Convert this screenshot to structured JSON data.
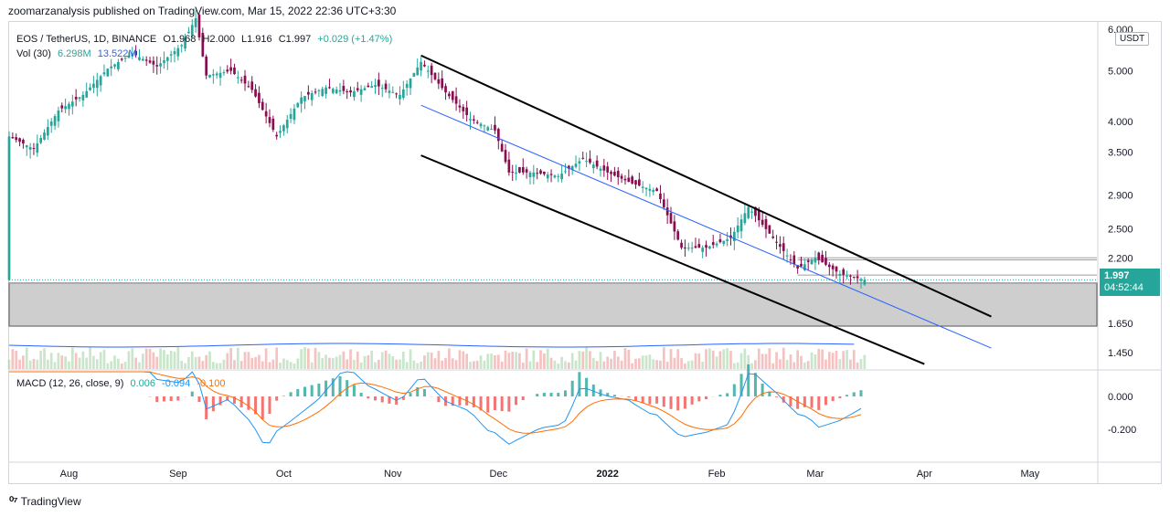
{
  "header": {
    "publisher_line": "zoomarzanalysis published on TradingView.com, Mar 15, 2022 22:36 UTC+3:30"
  },
  "legend": {
    "symbol": "EOS / TetherUS, 1D, BINANCE",
    "open": "O1.968",
    "high": "H2.000",
    "low": "L1.916",
    "close": "C1.997",
    "change": "+0.029 (+1.47%)",
    "vol_label": "Vol (30)",
    "vol_value": "6.298M",
    "vol_ma": "13.522M"
  },
  "macd_legend": {
    "label": "MACD (12, 26, close, 9)",
    "hist": "0.006",
    "macd": "-0.094",
    "signal": "-0.100"
  },
  "price_axis": {
    "currency": "USDT",
    "last_price": "1.997",
    "countdown": "04:52:44",
    "ticks": [
      "6.000",
      "5.000",
      "4.000",
      "3.500",
      "2.900",
      "2.500",
      "2.200",
      "1.650",
      "1.450"
    ]
  },
  "macd_axis": {
    "ticks": [
      "0.000",
      "-0.200"
    ]
  },
  "time_axis": {
    "labels": [
      "Aug",
      "Sep",
      "Oct",
      "Nov",
      "Dec",
      "2022",
      "Feb",
      "Mar",
      "Apr",
      "May"
    ]
  },
  "footer": {
    "brand": "TradingView"
  },
  "colors": {
    "up": "#26a69a",
    "down": "#880e4f",
    "macd_line": "#2196f3",
    "signal_line": "#ff6d00",
    "support_zone": "#bdbdbd",
    "channel": "#000000",
    "midline": "#2962ff"
  },
  "chart_data": {
    "type": "candlestick",
    "symbol": "EOS / TetherUS",
    "interval": "1D",
    "exchange": "BINANCE",
    "y_scale": "log",
    "ylim": [
      1.35,
      6.2
    ],
    "x_range": [
      "2021-07-15",
      "2022-05-20"
    ],
    "close_series": [
      {
        "date": "2021-07-15",
        "close": 3.75
      },
      {
        "date": "2021-07-22",
        "close": 3.55
      },
      {
        "date": "2021-07-29",
        "close": 4.2
      },
      {
        "date": "2021-08-05",
        "close": 4.5
      },
      {
        "date": "2021-08-12",
        "close": 5.05
      },
      {
        "date": "2021-08-19",
        "close": 5.4
      },
      {
        "date": "2021-08-26",
        "close": 5.1
      },
      {
        "date": "2021-09-02",
        "close": 5.6
      },
      {
        "date": "2021-09-06",
        "close": 6.3
      },
      {
        "date": "2021-09-09",
        "close": 4.9
      },
      {
        "date": "2021-09-16",
        "close": 5.0
      },
      {
        "date": "2021-09-22",
        "close": 4.6
      },
      {
        "date": "2021-09-29",
        "close": 3.75
      },
      {
        "date": "2021-10-06",
        "close": 4.45
      },
      {
        "date": "2021-10-13",
        "close": 4.65
      },
      {
        "date": "2021-10-20",
        "close": 4.55
      },
      {
        "date": "2021-10-27",
        "close": 4.7
      },
      {
        "date": "2021-11-03",
        "close": 4.5
      },
      {
        "date": "2021-11-09",
        "close": 5.2
      },
      {
        "date": "2021-11-16",
        "close": 4.55
      },
      {
        "date": "2021-11-23",
        "close": 4.05
      },
      {
        "date": "2021-11-30",
        "close": 3.85
      },
      {
        "date": "2021-12-04",
        "close": 3.2
      },
      {
        "date": "2021-12-11",
        "close": 3.2
      },
      {
        "date": "2021-12-18",
        "close": 3.15
      },
      {
        "date": "2021-12-25",
        "close": 3.4
      },
      {
        "date": "2022-01-01",
        "close": 3.2
      },
      {
        "date": "2022-01-08",
        "close": 3.05
      },
      {
        "date": "2022-01-15",
        "close": 2.95
      },
      {
        "date": "2022-01-22",
        "close": 2.3
      },
      {
        "date": "2022-01-29",
        "close": 2.3
      },
      {
        "date": "2022-02-05",
        "close": 2.4
      },
      {
        "date": "2022-02-10",
        "close": 2.75
      },
      {
        "date": "2022-02-17",
        "close": 2.4
      },
      {
        "date": "2022-02-24",
        "close": 2.1
      },
      {
        "date": "2022-03-01",
        "close": 2.2
      },
      {
        "date": "2022-03-08",
        "close": 2.05
      },
      {
        "date": "2022-03-15",
        "close": 1.997
      }
    ],
    "last_candle": {
      "open": 1.968,
      "high": 2.0,
      "low": 1.916,
      "close": 1.997,
      "change": 0.029,
      "change_pct": 1.47
    },
    "annotations": {
      "descending_channel_upper": [
        {
          "date": "2021-11-09",
          "price": 5.35
        },
        {
          "date": "2022-04-20",
          "price": 1.7
        }
      ],
      "descending_channel_lower": [
        {
          "date": "2021-11-09",
          "price": 3.45
        },
        {
          "date": "2022-04-01",
          "price": 1.38
        }
      ],
      "channel_midline": [
        {
          "date": "2021-11-09",
          "price": 4.3
        },
        {
          "date": "2022-04-20",
          "price": 1.48
        }
      ],
      "support_zone": [
        1.63,
        1.97
      ],
      "resistance_lines": [
        2.2,
        2.18,
        2.04,
        1.97
      ]
    },
    "volume": {
      "label": "Vol (30)",
      "last": "6.298M",
      "ma": "13.522M"
    },
    "macd": {
      "label": "MACD (12, 26, close, 9)",
      "histogram": 0.006,
      "macd": -0.094,
      "signal": -0.1
    }
  }
}
